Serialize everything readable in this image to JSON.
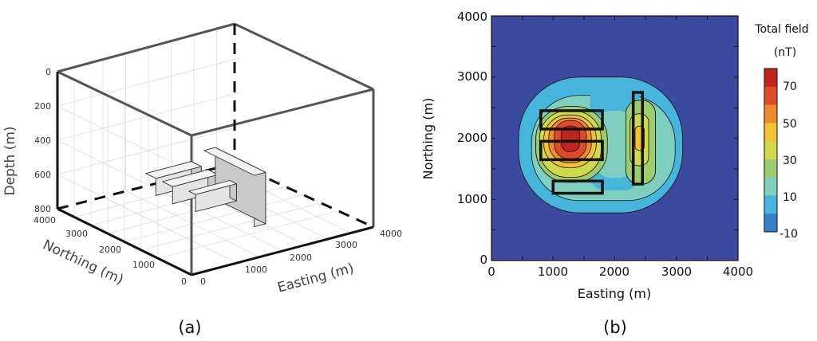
{
  "chart_data": [
    {
      "type": "3d-block-model",
      "panel_label": "(a)",
      "axes": {
        "depth": {
          "label": "Depth (m)",
          "ticks": [
            "0",
            "200",
            "400",
            "600",
            "800"
          ],
          "range": [
            0,
            800
          ]
        },
        "northing": {
          "label": "Northing (m)",
          "ticks": [
            "0",
            "1000",
            "2000",
            "3000",
            "4000"
          ],
          "range": [
            0,
            4000
          ]
        },
        "easting": {
          "label": "Easting (m)",
          "ticks": [
            "0",
            "1000",
            "2000",
            "3000",
            "4000"
          ],
          "range": [
            0,
            4000
          ]
        }
      },
      "blocks": [
        {
          "easting": [
            800,
            1800
          ],
          "northing": [
            2150,
            2450
          ],
          "depth": [
            500,
            600
          ]
        },
        {
          "easting": [
            800,
            1800
          ],
          "northing": [
            1650,
            1950
          ],
          "depth": [
            500,
            600
          ]
        },
        {
          "easting": [
            900,
            1800
          ],
          "northing": [
            1100,
            1300
          ],
          "depth": [
            500,
            600
          ]
        },
        {
          "easting": [
            2300,
            2550
          ],
          "northing": [
            1250,
            2750
          ],
          "depth": [
            500,
            800
          ]
        }
      ],
      "grid": true
    },
    {
      "type": "heatmap",
      "panel_label": "(b)",
      "xlabel": "Easting (m)",
      "ylabel": "Northing (m)",
      "xlim": [
        0,
        4000
      ],
      "ylim": [
        0,
        4000
      ],
      "x_ticks": [
        "0",
        "1000",
        "2000",
        "3000",
        "4000"
      ],
      "y_ticks": [
        "0",
        "1000",
        "2000",
        "3000",
        "4000"
      ],
      "colorbar": {
        "title_line1": "Total field",
        "title_line2": "(nT)",
        "tick_labels": [
          "70",
          "50",
          "30",
          "10",
          "-10"
        ],
        "levels": [
          -10,
          0,
          10,
          20,
          30,
          40,
          50,
          60,
          70,
          80
        ],
        "colors": [
          "#3b4a9e",
          "#3680c8",
          "#46b5dc",
          "#7fcfbe",
          "#9ccc6c",
          "#cfd94a",
          "#f2c432",
          "#ee8b2c",
          "#e04a26",
          "#c0261e"
        ]
      },
      "sources": [
        {
          "easting": [
            800,
            1800
          ],
          "northing": [
            2150,
            2450
          ]
        },
        {
          "easting": [
            800,
            1800
          ],
          "northing": [
            1650,
            1950
          ]
        },
        {
          "easting": [
            1000,
            1800
          ],
          "northing": [
            1100,
            1300
          ]
        },
        {
          "easting": [
            2300,
            2450
          ],
          "northing": [
            1250,
            2750
          ]
        }
      ],
      "contour_levels_nT": [
        {
          "level": 0,
          "color": "#3680c8",
          "easting": [
            440,
            3100
          ],
          "northing": [
            780,
            3000
          ]
        },
        {
          "level": 10,
          "color": "#46b5dc",
          "easting": [
            650,
            2980
          ],
          "northing": [
            980,
            2700
          ]
        },
        {
          "level": 20,
          "color": "#7fcfbe",
          "easting": [
            720,
            1880
          ],
          "northing": [
            1280,
            2520
          ]
        },
        {
          "level": 20,
          "color": "#7fcfbe",
          "easting": [
            2180,
            2660
          ],
          "northing": [
            1250,
            2620
          ]
        },
        {
          "level": 30,
          "color": "#9ccc6c",
          "easting": [
            780,
            1780
          ],
          "northing": [
            1360,
            2450
          ]
        },
        {
          "level": 30,
          "color": "#9ccc6c",
          "easting": [
            2250,
            2550
          ],
          "northing": [
            1550,
            2400
          ]
        },
        {
          "level": 40,
          "color": "#cfd94a",
          "easting": [
            850,
            1700
          ],
          "northing": [
            1520,
            2380
          ]
        },
        {
          "level": 40,
          "color": "#cfd94a",
          "easting": [
            2330,
            2480
          ],
          "northing": [
            1800,
            2200
          ]
        },
        {
          "level": 50,
          "color": "#f2c432",
          "easting": [
            930,
            1620
          ],
          "northing": [
            1600,
            2330
          ]
        },
        {
          "level": 60,
          "color": "#ee8b2c",
          "easting": [
            1020,
            1540
          ],
          "northing": [
            1660,
            2290
          ]
        },
        {
          "level": 70,
          "color": "#e04a26",
          "easting": [
            1130,
            1430
          ],
          "northing": [
            1780,
            2200
          ]
        }
      ]
    }
  ]
}
